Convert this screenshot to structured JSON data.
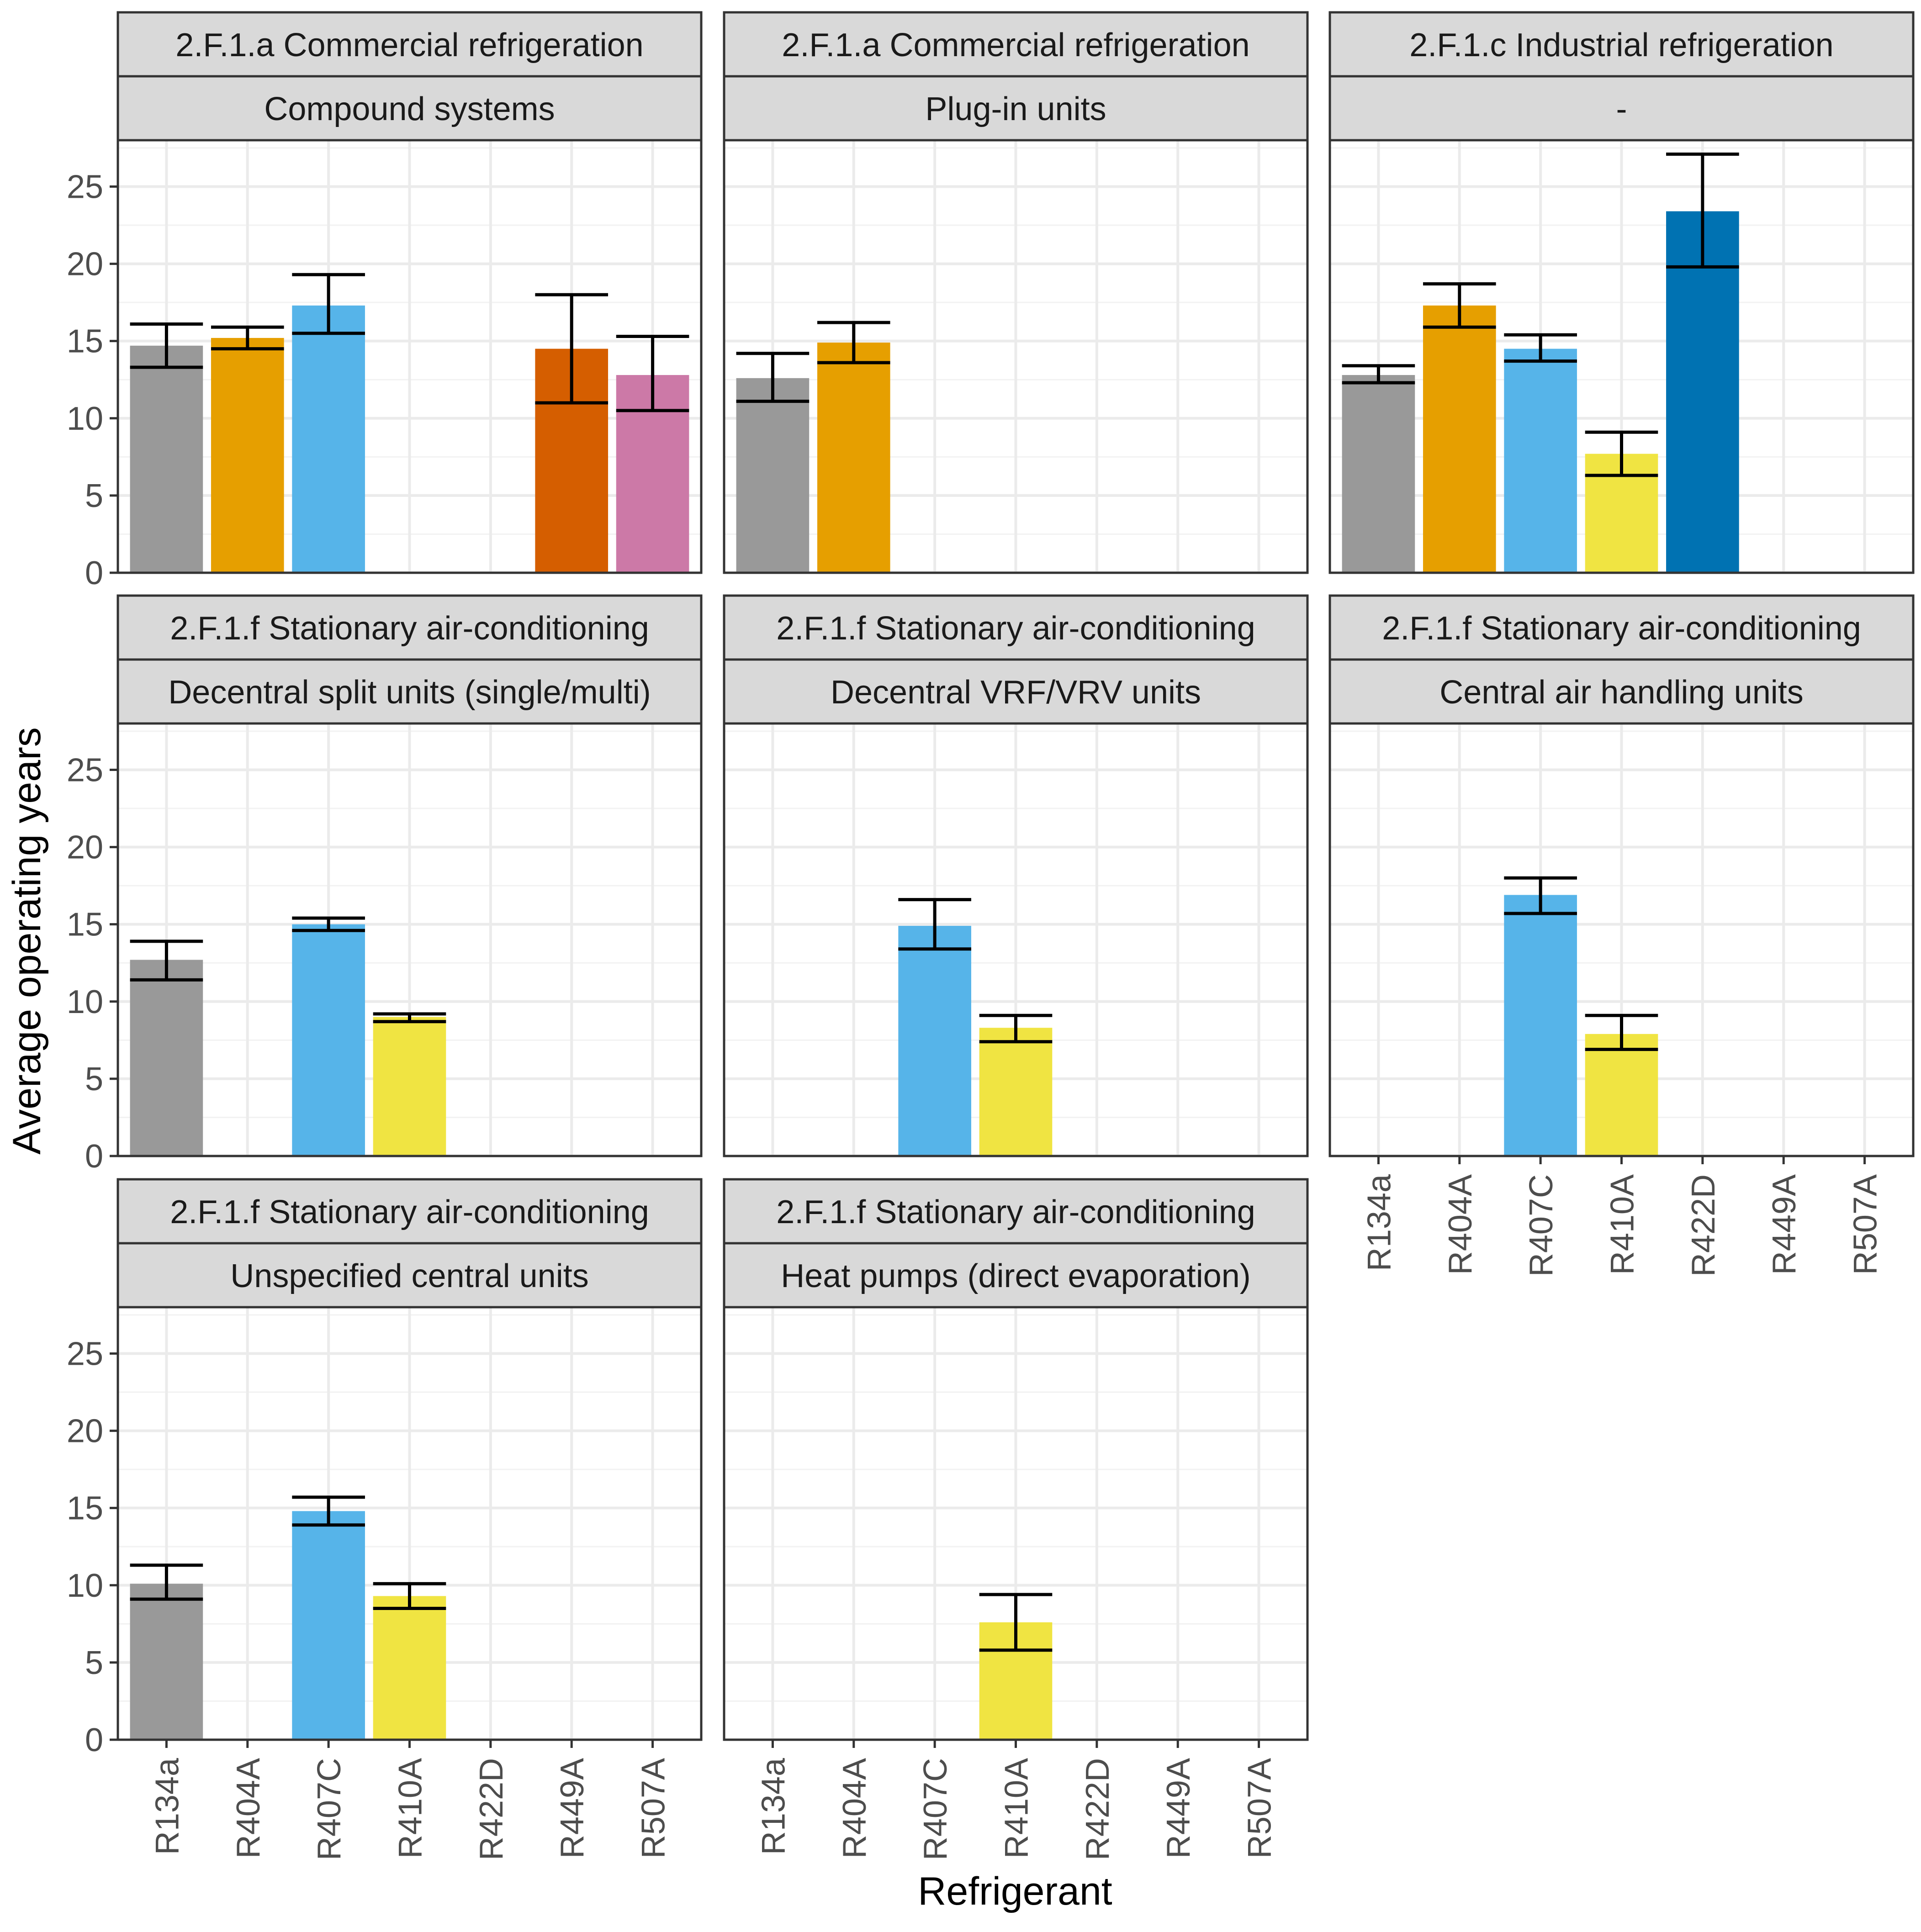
{
  "chart_data": {
    "type": "bar",
    "ylabel": "Average operating years",
    "xlabel": "Refrigerant",
    "categories": [
      "R134a",
      "R404A",
      "R407C",
      "R410A",
      "R422D",
      "R449A",
      "R507A"
    ],
    "ylim": [
      0,
      28
    ],
    "y_ticks": [
      "0",
      "5",
      "10",
      "15",
      "20",
      "25"
    ],
    "grid": true,
    "series_colors": {
      "R134a": "#999999",
      "R404A": "#E69F00",
      "R407C": "#56B4E9",
      "R410A": "#F0E442",
      "R422D": "#0072B2",
      "R449A": "#D55E00",
      "R507A": "#CC79A7"
    },
    "error_bar_color": "#000000",
    "panels": [
      {
        "strip_top": "2.F.1.a Commercial refrigeration",
        "strip_bottom": "Compound systems",
        "bars": [
          {
            "category": "R134a",
            "value": 14.7,
            "err_low": 13.3,
            "err_high": 16.1
          },
          {
            "category": "R404A",
            "value": 15.2,
            "err_low": 14.5,
            "err_high": 15.9
          },
          {
            "category": "R407C",
            "value": 17.3,
            "err_low": 15.5,
            "err_high": 19.3
          },
          {
            "category": "R449A",
            "value": 14.5,
            "err_low": 11.0,
            "err_high": 18.0
          },
          {
            "category": "R507A",
            "value": 12.8,
            "err_low": 10.5,
            "err_high": 15.3
          }
        ]
      },
      {
        "strip_top": "2.F.1.a Commercial refrigeration",
        "strip_bottom": "Plug-in units",
        "bars": [
          {
            "category": "R134a",
            "value": 12.6,
            "err_low": 11.1,
            "err_high": 14.2
          },
          {
            "category": "R404A",
            "value": 14.9,
            "err_low": 13.6,
            "err_high": 16.2
          }
        ]
      },
      {
        "strip_top": "2.F.1.c Industrial refrigeration",
        "strip_bottom": "-",
        "bars": [
          {
            "category": "R134a",
            "value": 12.8,
            "err_low": 12.3,
            "err_high": 13.4
          },
          {
            "category": "R404A",
            "value": 17.3,
            "err_low": 15.9,
            "err_high": 18.7
          },
          {
            "category": "R407C",
            "value": 14.5,
            "err_low": 13.7,
            "err_high": 15.4
          },
          {
            "category": "R410A",
            "value": 7.7,
            "err_low": 6.3,
            "err_high": 9.1
          },
          {
            "category": "R422D",
            "value": 23.4,
            "err_low": 19.8,
            "err_high": 27.1
          }
        ]
      },
      {
        "strip_top": "2.F.1.f Stationary air-conditioning",
        "strip_bottom": "Decentral split units (single/multi)",
        "bars": [
          {
            "category": "R134a",
            "value": 12.7,
            "err_low": 11.4,
            "err_high": 13.9
          },
          {
            "category": "R407C",
            "value": 15.0,
            "err_low": 14.6,
            "err_high": 15.4
          },
          {
            "category": "R410A",
            "value": 9.0,
            "err_low": 8.7,
            "err_high": 9.2
          }
        ]
      },
      {
        "strip_top": "2.F.1.f Stationary air-conditioning",
        "strip_bottom": "Decentral VRF/VRV units",
        "bars": [
          {
            "category": "R407C",
            "value": 14.9,
            "err_low": 13.4,
            "err_high": 16.6
          },
          {
            "category": "R410A",
            "value": 8.3,
            "err_low": 7.4,
            "err_high": 9.1
          }
        ]
      },
      {
        "strip_top": "2.F.1.f Stationary air-conditioning",
        "strip_bottom": "Central air handling units",
        "bars": [
          {
            "category": "R407C",
            "value": 16.9,
            "err_low": 15.7,
            "err_high": 18.0
          },
          {
            "category": "R410A",
            "value": 7.9,
            "err_low": 6.9,
            "err_high": 9.1
          }
        ]
      },
      {
        "strip_top": "2.F.1.f Stationary air-conditioning",
        "strip_bottom": "Unspecified central units",
        "bars": [
          {
            "category": "R134a",
            "value": 10.1,
            "err_low": 9.1,
            "err_high": 11.3
          },
          {
            "category": "R407C",
            "value": 14.8,
            "err_low": 13.9,
            "err_high": 15.7
          },
          {
            "category": "R410A",
            "value": 9.3,
            "err_low": 8.5,
            "err_high": 10.1
          }
        ]
      },
      {
        "strip_top": "2.F.1.f Stationary air-conditioning",
        "strip_bottom": "Heat pumps (direct evaporation)",
        "bars": [
          {
            "category": "R410A",
            "value": 7.6,
            "err_low": 5.8,
            "err_high": 9.4
          }
        ]
      }
    ]
  }
}
